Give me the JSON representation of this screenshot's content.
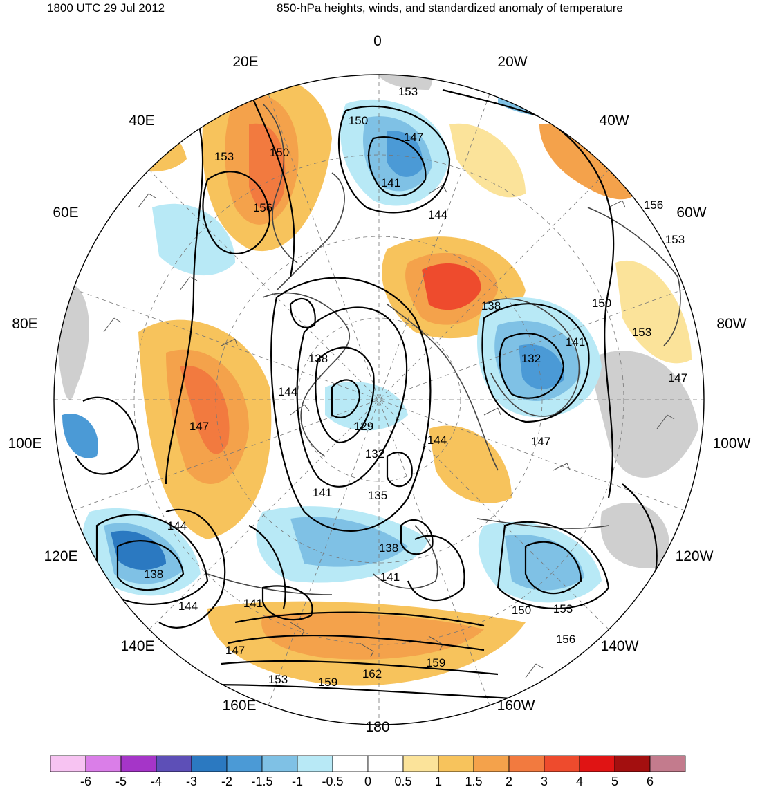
{
  "header": {
    "valid_time": "1800 UTC 29 Jul 2012",
    "title": "850-hPa heights, winds, and standardized anomaly of temperature"
  },
  "map": {
    "projection": "north-polar-stereographic",
    "longitude_labels": [
      "0",
      "20W",
      "40W",
      "60W",
      "80W",
      "100W",
      "120W",
      "140W",
      "160W",
      "180",
      "160E",
      "140E",
      "120E",
      "100E",
      "80E",
      "60E",
      "40E",
      "20E"
    ],
    "height_contour_labels": [
      "153",
      "150",
      "147",
      "141",
      "144",
      "156",
      "153",
      "150",
      "153",
      "138",
      "141",
      "132",
      "147",
      "144",
      "129",
      "132",
      "135",
      "138",
      "141",
      "141",
      "138",
      "144",
      "147",
      "156",
      "153",
      "150",
      "153",
      "156",
      "159",
      "162",
      "159",
      "153",
      "147",
      "144",
      "141",
      "138",
      "144",
      "147",
      "150"
    ]
  },
  "colorbar": {
    "ticks": [
      "-6",
      "-5",
      "-4",
      "-3",
      "-2",
      "-1.5",
      "-1",
      "-0.5",
      "0",
      "0.5",
      "1",
      "1.5",
      "2",
      "3",
      "4",
      "5",
      "6"
    ],
    "colors": [
      "#f7c3f2",
      "#da7ee8",
      "#a535c8",
      "#5d4fb7",
      "#2b79c1",
      "#4b9ad6",
      "#7fc1e5",
      "#b8e9f6",
      "#ffffff",
      "#ffffff",
      "#fbe39a",
      "#f7c35c",
      "#f4a24b",
      "#f27a3f",
      "#ee4b2d",
      "#e01414",
      "#a30f0f",
      "#c37b8d"
    ]
  }
}
